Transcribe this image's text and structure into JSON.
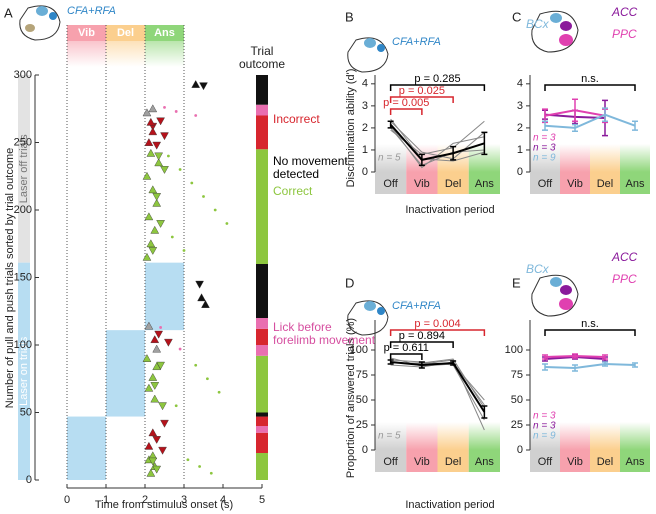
{
  "chart_data": [
    {
      "type": "raster",
      "panel": "A",
      "region": "CFA+RFA",
      "xlabel": "Time  from stimulus onset (s)",
      "ylabel": "Number of pull and push trials sorted by trial outcome",
      "xlim": [
        0,
        5
      ],
      "xticks": [
        0,
        1,
        2,
        3,
        4,
        5
      ],
      "ylim": [
        0,
        300
      ],
      "yticks": [
        0,
        50,
        100,
        150,
        200,
        250,
        300
      ],
      "periods": [
        "Vib",
        "Del",
        "Ans"
      ],
      "period_colors": [
        "#f7a1ad",
        "#fbcf8e",
        "#8fd67a"
      ],
      "laser_labels": [
        "Laser off trials",
        "Laser on trials"
      ],
      "laser_colors": [
        "#e3e3e3",
        "#b7ddf2"
      ],
      "laser_on": [
        {
          "x": [
            0,
            1
          ],
          "y": [
            0,
            47
          ]
        },
        {
          "x": [
            1,
            2
          ],
          "y": [
            47,
            111
          ]
        },
        {
          "x": [
            2,
            3
          ],
          "y": [
            111,
            161
          ]
        }
      ],
      "outcome_title": [
        "Trial",
        "outcome"
      ],
      "outcome_labels": [
        [
          "Incorrect"
        ],
        [
          "Correct"
        ],
        [
          "No movement",
          "detected"
        ],
        [
          "Lick before",
          "forelimb movement"
        ]
      ],
      "outcome_colors": [
        "#d7262e",
        "#8dc63f",
        "#111111",
        "#e96fb0"
      ],
      "outcome_segments": [
        {
          "outcome": 1,
          "y": [
            0,
            20
          ]
        },
        {
          "outcome": 0,
          "y": [
            20,
            35
          ]
        },
        {
          "outcome": 3,
          "y": [
            35,
            40
          ]
        },
        {
          "outcome": 0,
          "y": [
            40,
            47
          ]
        },
        {
          "outcome": 2,
          "y": [
            47,
            50
          ]
        },
        {
          "outcome": 1,
          "y": [
            50,
            92
          ]
        },
        {
          "outcome": 3,
          "y": [
            92,
            100
          ]
        },
        {
          "outcome": 0,
          "y": [
            100,
            112
          ]
        },
        {
          "outcome": 3,
          "y": [
            112,
            120
          ]
        },
        {
          "outcome": 2,
          "y": [
            120,
            160
          ]
        },
        {
          "outcome": 1,
          "y": [
            160,
            245
          ]
        },
        {
          "outcome": 0,
          "y": [
            245,
            270
          ]
        },
        {
          "outcome": 3,
          "y": [
            270,
            278
          ]
        },
        {
          "outcome": 2,
          "y": [
            278,
            300
          ]
        }
      ],
      "markers": [
        {
          "shape": "up",
          "color": "#8dc63f",
          "x": [
            2.05,
            2.15,
            2.25,
            2.1,
            2.3,
            2.2,
            2.05,
            2.35,
            2.15,
            2.25,
            2.1,
            2.2,
            2.3,
            2.05,
            2.15,
            2.25,
            2.1,
            2.2
          ],
          "y": [
            165,
            175,
            185,
            195,
            205,
            215,
            225,
            235,
            242,
            60,
            68,
            76,
            84,
            90,
            5,
            10,
            15,
            18
          ]
        },
        {
          "shape": "down",
          "color": "#8dc63f",
          "x": [
            2.2,
            2.4,
            2.3,
            2.5,
            2.35,
            2.45,
            2.25,
            2.4,
            2.3,
            2.2
          ],
          "y": [
            170,
            190,
            210,
            230,
            240,
            55,
            70,
            85,
            8,
            14
          ]
        },
        {
          "shape": "down",
          "color": "#b5121b",
          "x": [
            2.3,
            2.5,
            2.2,
            2.4,
            2.6,
            2.35,
            2.45,
            2.3,
            2.5
          ],
          "y": [
            248,
            255,
            262,
            266,
            102,
            108,
            22,
            30,
            42
          ]
        },
        {
          "shape": "up",
          "color": "#b5121b",
          "x": [
            2.1,
            2.2,
            2.15,
            2.25,
            2.1,
            2.2
          ],
          "y": [
            250,
            258,
            265,
            104,
            25,
            35
          ]
        },
        {
          "shape": "up",
          "color": "#a0a0a0",
          "x": [
            2.05,
            2.2,
            2.1,
            2.3
          ],
          "y": [
            272,
            275,
            114,
            97
          ]
        },
        {
          "shape": "dot",
          "color": "#e96fb0",
          "x": [
            2.5,
            2.8,
            3.3,
            2.4,
            2.9
          ],
          "y": [
            276,
            273,
            270,
            113,
            97
          ]
        },
        {
          "shape": "up",
          "color": "#111111",
          "x": [
            3.3,
            3.45,
            3.55
          ],
          "y": [
            293,
            135,
            130
          ]
        },
        {
          "shape": "down",
          "color": "#111111",
          "x": [
            3.5,
            3.4
          ],
          "y": [
            292,
            145
          ]
        },
        {
          "shape": "dot",
          "color": "#8dc63f",
          "x": [
            2.6,
            2.9,
            3.2,
            3.5,
            3.8,
            4.1,
            2.7,
            3.0,
            3.3,
            3.6,
            3.9,
            2.8,
            3.1,
            3.4,
            3.7
          ],
          "y": [
            240,
            230,
            220,
            210,
            200,
            190,
            180,
            170,
            85,
            75,
            65,
            55,
            15,
            10,
            5
          ]
        }
      ]
    },
    {
      "type": "line",
      "panel": "B",
      "region": "CFA+RFA",
      "ylabel": "Discrimination ability (d')",
      "xlabel": "Inactivation period",
      "categories": [
        "Off",
        "Vib",
        "Del",
        "Ans"
      ],
      "category_colors": [
        "#d0d0d0",
        "#f7a1ad",
        "#fbcf8e",
        "#8fd67a"
      ],
      "ylim": [
        0,
        4.4
      ],
      "yticks": [
        0,
        1,
        2,
        3,
        4
      ],
      "series": [
        {
          "color": "#888888",
          "values": [
            2.0,
            0.3,
            0.9,
            1.0
          ]
        },
        {
          "color": "#888888",
          "values": [
            2.3,
            0.9,
            0.6,
            1.8
          ]
        },
        {
          "color": "#888888",
          "values": [
            2.1,
            0.2,
            1.3,
            1.6
          ]
        },
        {
          "color": "#888888",
          "values": [
            2.4,
            0.6,
            0.5,
            0.9
          ]
        },
        {
          "color": "#888888",
          "values": [
            1.9,
            0.8,
            1.1,
            2.3
          ]
        },
        {
          "color": "#000000",
          "values": [
            2.15,
            0.55,
            0.85,
            1.3
          ],
          "errors": [
            0.15,
            0.25,
            0.3,
            0.5
          ]
        }
      ],
      "n_labels": [
        "n = 5"
      ],
      "n_colors": [
        "#999999"
      ],
      "brackets": [
        {
          "from": 0,
          "to": 3,
          "label": "p = 0.285",
          "color": "#000000"
        },
        {
          "from": 0,
          "to": 2,
          "label": "p = 0.025",
          "color": "#d7262e"
        },
        {
          "from": 0,
          "to": 1,
          "label": "p = 0.005",
          "color": "#d7262e"
        }
      ]
    },
    {
      "type": "line",
      "panel": "C",
      "categories": [
        "Off",
        "Vib",
        "Del",
        "Ans"
      ],
      "category_colors": [
        "#d0d0d0",
        "#f7a1ad",
        "#fbcf8e",
        "#8fd67a"
      ],
      "ylim": [
        0,
        4.4
      ],
      "yticks": [
        0,
        1,
        2,
        3,
        4
      ],
      "series": [
        {
          "name": "ACC",
          "color": "#8a1a9b",
          "values": [
            2.6,
            2.5,
            2.45,
            null
          ],
          "errors": [
            0.2,
            0.3,
            0.8,
            null
          ]
        },
        {
          "name": "PPC",
          "color": "#e040b0",
          "values": [
            2.55,
            2.8,
            2.55,
            null
          ],
          "errors": [
            0.3,
            0.5,
            0.3,
            null
          ]
        },
        {
          "name": "BCx",
          "color": "#7fb8db",
          "values": [
            2.1,
            2.0,
            2.6,
            2.1
          ],
          "errors": [
            0.2,
            0.15,
            0.3,
            0.2
          ]
        }
      ],
      "n_labels": [
        "n = 3",
        "n = 3",
        "n = 9"
      ],
      "n_colors": [
        "#e040b0",
        "#8a1a9b",
        "#7fb8db"
      ],
      "brackets": [
        {
          "from": 0,
          "to": 3,
          "label": "n.s.",
          "color": "#000000"
        }
      ]
    },
    {
      "type": "line",
      "panel": "D",
      "region": "CFA+RFA",
      "ylabel": "Proportion of answered trials (%)",
      "xlabel": "Inactivation period",
      "categories": [
        "Off",
        "Vib",
        "Del",
        "Ans"
      ],
      "category_colors": [
        "#d0d0d0",
        "#f7a1ad",
        "#fbcf8e",
        "#8fd67a"
      ],
      "ylim": [
        0,
        130
      ],
      "yticks": [
        0,
        25,
        50,
        75,
        100
      ],
      "series": [
        {
          "color": "#888888",
          "values": [
            90,
            88,
            85,
            30
          ]
        },
        {
          "color": "#888888",
          "values": [
            85,
            83,
            88,
            45
          ]
        },
        {
          "color": "#888888",
          "values": [
            88,
            86,
            90,
            20
          ]
        },
        {
          "color": "#888888",
          "values": [
            92,
            84,
            86,
            50
          ]
        },
        {
          "color": "#888888",
          "values": [
            87,
            87,
            91,
            42
          ]
        },
        {
          "color": "#000000",
          "values": [
            88,
            85,
            87,
            38
          ],
          "errors": [
            2,
            3,
            2,
            6
          ]
        }
      ],
      "n_labels": [
        "n = 5"
      ],
      "n_colors": [
        "#999999"
      ],
      "brackets": [
        {
          "from": 0,
          "to": 3,
          "label": "p = 0.004",
          "color": "#d7262e"
        },
        {
          "from": 0,
          "to": 2,
          "label": "p = 0.894",
          "color": "#000000"
        },
        {
          "from": 0,
          "to": 1,
          "label": "p = 0.611",
          "color": "#000000"
        }
      ]
    },
    {
      "type": "line",
      "panel": "E",
      "categories": [
        "Off",
        "Vib",
        "Del",
        "Ans"
      ],
      "category_colors": [
        "#d0d0d0",
        "#f7a1ad",
        "#fbcf8e",
        "#8fd67a"
      ],
      "ylim": [
        0,
        130
      ],
      "yticks": [
        0,
        25,
        50,
        75,
        100
      ],
      "series": [
        {
          "name": "ACC",
          "color": "#8a1a9b",
          "values": [
            91,
            93,
            91,
            null
          ],
          "errors": [
            2,
            2,
            2,
            null
          ]
        },
        {
          "name": "PPC",
          "color": "#e040b0",
          "values": [
            93,
            94,
            93,
            null
          ],
          "errors": [
            2,
            2,
            2,
            null
          ]
        },
        {
          "name": "BCx",
          "color": "#7fb8db",
          "values": [
            83,
            82,
            86,
            85
          ],
          "errors": [
            3,
            3,
            2,
            2
          ]
        }
      ],
      "n_labels": [
        "n = 3",
        "n = 3",
        "n = 9"
      ],
      "n_colors": [
        "#e040b0",
        "#8a1a9b",
        "#7fb8db"
      ],
      "brackets": [
        {
          "from": 0,
          "to": 3,
          "label": "n.s.",
          "color": "#000000"
        }
      ]
    }
  ]
}
